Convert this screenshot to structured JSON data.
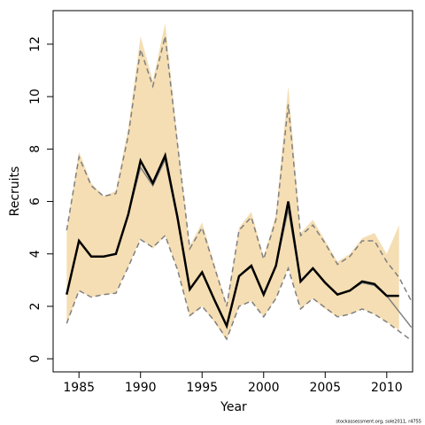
{
  "chart_data": {
    "type": "line",
    "x_label": "Year",
    "y_label": "Recruits",
    "footnote": "stockassessment.org, sole2011, r4755",
    "x": [
      1984,
      1985,
      1986,
      1987,
      1988,
      1989,
      1990,
      1991,
      1992,
      1993,
      1994,
      1995,
      1996,
      1997,
      1998,
      1999,
      2000,
      2001,
      2002,
      2003,
      2004,
      2005,
      2006,
      2007,
      2008,
      2009,
      2010,
      2011,
      2012
    ],
    "xlim": [
      1982.9,
      2012.1
    ],
    "xticks": [
      1985,
      1990,
      1995,
      2000,
      2005,
      2010
    ],
    "ylim": [
      -0.5,
      13.28
    ],
    "yticks": [
      0,
      2,
      4,
      6,
      8,
      10,
      12
    ],
    "series": [
      {
        "kind": "band",
        "color": "#f5deb3",
        "values": [
          4.9,
          7.9,
          6.7,
          6.2,
          6.4,
          8.8,
          12.3,
          10.6,
          12.8,
          8.4,
          4.3,
          5.2,
          3.6,
          2.1,
          5.0,
          5.6,
          3.9,
          5.5,
          10.4,
          4.8,
          5.3,
          4.5,
          3.7,
          4.0,
          4.6,
          4.8,
          4.0,
          5.1,
          null
        ],
        "lower": [
          1.3,
          2.6,
          2.35,
          2.45,
          2.5,
          3.5,
          4.6,
          4.2,
          4.7,
          3.4,
          1.6,
          2.0,
          1.4,
          0.7,
          2.0,
          2.2,
          1.6,
          2.3,
          3.5,
          1.9,
          2.3,
          1.9,
          1.6,
          1.7,
          1.9,
          1.7,
          1.4,
          1.1,
          null
        ]
      },
      {
        "kind": "dashed",
        "color": "#808080",
        "values": [
          4.9,
          7.7,
          6.6,
          6.2,
          6.3,
          8.5,
          11.8,
          10.4,
          12.3,
          8.2,
          4.2,
          5.0,
          3.5,
          2.0,
          4.9,
          5.4,
          3.8,
          5.3,
          9.7,
          4.7,
          5.1,
          4.4,
          3.6,
          3.9,
          4.5,
          4.5,
          3.7,
          3.1,
          2.2
        ]
      },
      {
        "kind": "dashed",
        "color": "#808080",
        "values": [
          1.35,
          2.6,
          2.35,
          2.45,
          2.5,
          3.5,
          4.55,
          4.25,
          4.7,
          3.4,
          1.65,
          2.0,
          1.45,
          0.75,
          2.0,
          2.2,
          1.6,
          2.3,
          3.45,
          1.9,
          2.3,
          1.95,
          1.6,
          1.7,
          1.9,
          1.7,
          1.4,
          1.05,
          0.7
        ]
      },
      {
        "kind": "solid",
        "color": "#808080",
        "width": 1.5,
        "values": [
          2.45,
          4.5,
          3.9,
          3.9,
          4.0,
          5.5,
          7.3,
          6.6,
          7.6,
          5.3,
          2.65,
          3.3,
          2.25,
          1.25,
          3.15,
          3.5,
          2.45,
          3.55,
          5.7,
          2.95,
          3.45,
          2.9,
          2.45,
          2.6,
          2.9,
          2.8,
          2.4,
          1.8,
          1.2
        ]
      },
      {
        "kind": "solid",
        "color": "#000000",
        "width": 2.5,
        "values": [
          2.45,
          4.5,
          3.9,
          3.9,
          4.0,
          5.5,
          7.55,
          6.7,
          7.75,
          5.4,
          2.65,
          3.3,
          2.25,
          1.25,
          3.15,
          3.55,
          2.45,
          3.55,
          6.0,
          2.95,
          3.45,
          2.9,
          2.45,
          2.6,
          2.95,
          2.85,
          2.4,
          2.4,
          null
        ]
      }
    ]
  }
}
